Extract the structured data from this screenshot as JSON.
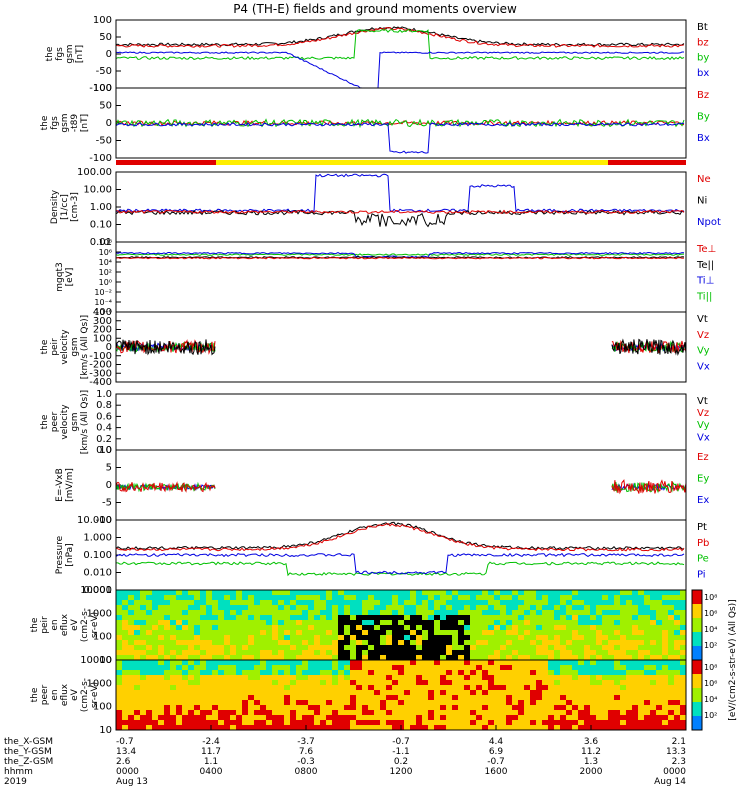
{
  "title": "P4 (TH-E) fields and ground moments overview",
  "chart_data": [
    {
      "type": "line",
      "ylabel": [
        "the",
        "fgs",
        "gsm",
        "[nT]"
      ],
      "ylim": [
        -100,
        100
      ],
      "ticks": [
        "100",
        "50",
        "0",
        "-50",
        "-100"
      ],
      "series": [
        {
          "name": "Bt",
          "color": "#000000"
        },
        {
          "name": "bz",
          "color": "#e00000"
        },
        {
          "name": "by",
          "color": "#00c000"
        },
        {
          "name": "bx",
          "color": "#0000e0"
        }
      ]
    },
    {
      "type": "line",
      "ylabel": [
        "the",
        "fgs",
        "gsm",
        "-t89",
        "[nT]"
      ],
      "ylim": [
        -125,
        125
      ],
      "ticks": [
        "100",
        "50",
        "0",
        "-50",
        "-100"
      ],
      "series": [
        {
          "name": "Bz",
          "color": "#e00000"
        },
        {
          "name": "By",
          "color": "#00c000"
        },
        {
          "name": "Bx",
          "color": "#0000e0"
        }
      ]
    },
    {
      "type": "line",
      "ylabel": [
        "Density",
        "[1/cc]",
        "[cm-3]"
      ],
      "scale": "log",
      "ticks": [
        "100.00",
        "10.00",
        "1.00",
        "0.10",
        "0.01"
      ],
      "series": [
        {
          "name": "Ne",
          "color": "#e00000"
        },
        {
          "name": "Ni",
          "color": "#000000"
        },
        {
          "name": "Npot",
          "color": "#0000e0"
        }
      ]
    },
    {
      "type": "line",
      "ylabel": [
        "mgqt3",
        "[eV]"
      ],
      "scale": "log",
      "ticks": [
        "10⁸",
        "10⁶",
        "10⁴",
        "10²",
        "10⁰",
        "10⁻²",
        "10⁻⁴",
        "10⁻⁶"
      ],
      "series": [
        {
          "name": "Te⊥",
          "color": "#e00000"
        },
        {
          "name": "Te||",
          "color": "#000000"
        },
        {
          "name": "Ti⊥",
          "color": "#0000e0"
        },
        {
          "name": "Ti||",
          "color": "#00c000"
        }
      ]
    },
    {
      "type": "line",
      "ylabel": [
        "the",
        "peir",
        "velocity",
        "gsm",
        "[km/s (All Qs)]"
      ],
      "ylim": [
        -400,
        400
      ],
      "ticks": [
        "400",
        "300",
        "200",
        "100",
        "0",
        "-100",
        "-200",
        "-300",
        "-400"
      ],
      "series": [
        {
          "name": "Vt",
          "color": "#000000"
        },
        {
          "name": "Vz",
          "color": "#e00000"
        },
        {
          "name": "Vy",
          "color": "#00c000"
        },
        {
          "name": "Vx",
          "color": "#0000e0"
        }
      ]
    },
    {
      "type": "line",
      "ylabel": [
        "the",
        "peer",
        "velocity",
        "gsm",
        "[km/s (All Qs)]"
      ],
      "ylim": [
        0,
        1
      ],
      "ticks": [
        "1.0",
        "0.8",
        "0.6",
        "0.4",
        "0.2",
        "0.0"
      ],
      "series": [
        {
          "name": "Vt",
          "color": "#000000"
        },
        {
          "name": "Vz",
          "color": "#e00000"
        },
        {
          "name": "Vy",
          "color": "#00c000"
        },
        {
          "name": "Vx",
          "color": "#0000e0"
        }
      ]
    },
    {
      "type": "line",
      "ylabel": [
        "E=-VxB",
        "[mV/m]"
      ],
      "ylim": [
        -12,
        12
      ],
      "ticks": [
        "10",
        "5",
        "0",
        "-5",
        "-10"
      ],
      "series": [
        {
          "name": "Ez",
          "color": "#e00000"
        },
        {
          "name": "Ey",
          "color": "#00c000"
        },
        {
          "name": "Ex",
          "color": "#0000e0"
        }
      ]
    },
    {
      "type": "line",
      "ylabel": [
        "Pressure",
        "[nPa]"
      ],
      "scale": "log",
      "ticks": [
        "10.000",
        "1.000",
        "0.100",
        "0.010",
        "0.001"
      ],
      "series": [
        {
          "name": "Pt",
          "color": "#000000"
        },
        {
          "name": "Pb",
          "color": "#e00000"
        },
        {
          "name": "Pe",
          "color": "#00c000"
        },
        {
          "name": "Pi",
          "color": "#0000e0"
        }
      ]
    },
    {
      "type": "heatmap",
      "ylabel": [
        "the",
        "peir",
        "en",
        "eflux",
        "eV",
        "(cm2-s-",
        "sr-eV)"
      ],
      "ticks": [
        "10000",
        "1000",
        "100",
        "10"
      ]
    },
    {
      "type": "heatmap",
      "ylabel": [
        "the",
        "peer",
        "en",
        "eflux",
        "eV",
        "(cm2-s-",
        "sr-eV)"
      ],
      "ticks": [
        "10000",
        "1000",
        "100",
        "10"
      ]
    }
  ],
  "colorbar": {
    "label": "[eV/(cm2-s-str-eV) (All Qs)]",
    "ticks": [
      "10⁸",
      "10⁶",
      "10⁴",
      "10²"
    ]
  },
  "xaxis": {
    "row_labels": [
      "the_X-GSM",
      "the_Y-GSM",
      "the_Z-GSM",
      "hhmm",
      "2019"
    ],
    "columns": [
      [
        "-0.7",
        "13.4",
        "2.6",
        "0000",
        "Aug 13"
      ],
      [
        "-2.4",
        "11.7",
        "1.1",
        "0400",
        ""
      ],
      [
        "-3.7",
        "7.6",
        "-0.3",
        "0800",
        ""
      ],
      [
        "-0.7",
        "-1.1",
        "0.2",
        "1200",
        ""
      ],
      [
        "4.4",
        "6.9",
        "-0.7",
        "1600",
        ""
      ],
      [
        "3.6",
        "11.2",
        "1.3",
        "2000",
        ""
      ],
      [
        "2.1",
        "13.3",
        "2.3",
        "0000",
        "Aug 14"
      ]
    ]
  }
}
